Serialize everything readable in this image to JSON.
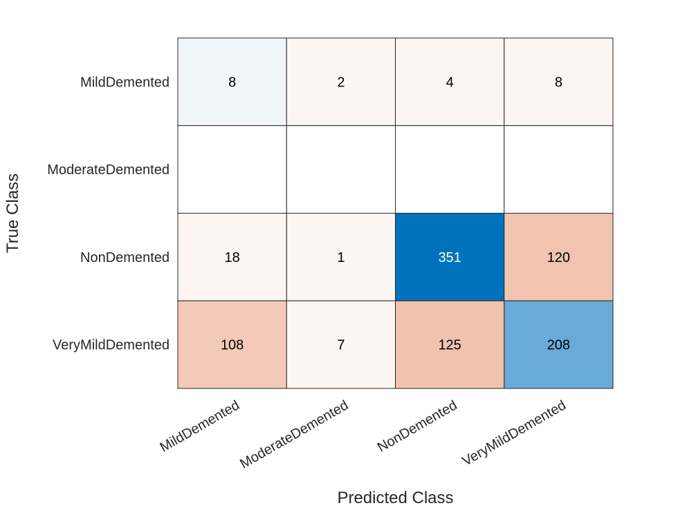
{
  "chart_data": {
    "type": "heatmap",
    "xlabel": "Predicted Class",
    "ylabel": "True Class",
    "x_categories": [
      "MildDemented",
      "ModerateDemented",
      "NonDemented",
      "VeryMildDemented"
    ],
    "y_categories": [
      "MildDemented",
      "ModerateDemented",
      "NonDemented",
      "VeryMildDemented"
    ],
    "values": [
      [
        8,
        2,
        4,
        8
      ],
      [
        0,
        0,
        0,
        0
      ],
      [
        18,
        1,
        351,
        120
      ],
      [
        108,
        7,
        125,
        208
      ]
    ],
    "hide_zero_cells": true,
    "colors": {
      "diagonal": "#0072BD",
      "off_diagonal": "#D95319",
      "grid": "#262626",
      "light_text": "#ffffff",
      "dark_text": "#000000"
    }
  }
}
